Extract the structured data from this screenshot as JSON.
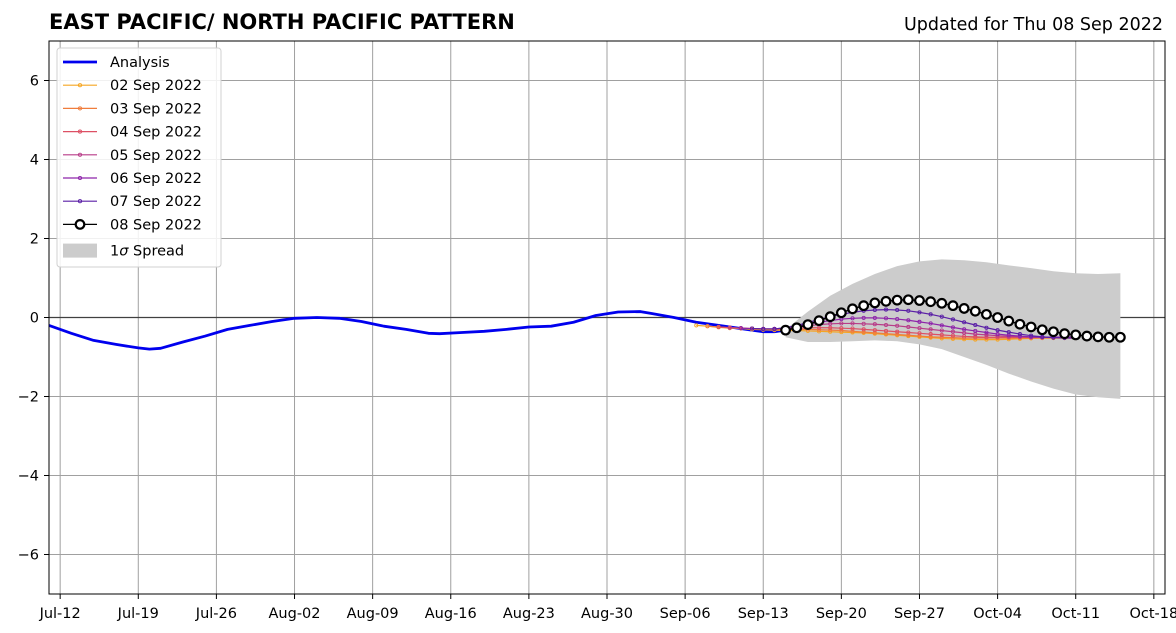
{
  "chart_data": {
    "type": "line",
    "title": "EAST PACIFIC/ NORTH PACIFIC PATTERN",
    "subtitle": "Updated for Thu 08 Sep 2022",
    "xlabel": "",
    "ylabel": "",
    "x_axis": {
      "start_day": 0,
      "end_day": 100,
      "tick_days": [
        1,
        8,
        15,
        22,
        29,
        36,
        43,
        50,
        57,
        64,
        71,
        78,
        85,
        92,
        99
      ],
      "tick_labels": [
        "Jul-12",
        "Jul-19",
        "Jul-26",
        "Aug-02",
        "Aug-09",
        "Aug-16",
        "Aug-23",
        "Aug-30",
        "Sep-06",
        "Sep-13",
        "Sep-20",
        "Sep-27",
        "Oct-04",
        "Oct-11",
        "Oct-18"
      ]
    },
    "ylim": [
      -7,
      7
    ],
    "y_ticks": [
      -6,
      -4,
      -2,
      0,
      2,
      4,
      6
    ],
    "y_tick_labels": [
      "−6",
      "−4",
      "−2",
      "0",
      "2",
      "4",
      "6"
    ],
    "grid": true,
    "legend_position": "top-left",
    "legend": {
      "analysis": "Analysis",
      "spread": "1σ Spread",
      "spread_prefix": "1",
      "spread_sigma": "σ",
      "spread_suffix": " Spread"
    },
    "analysis": {
      "name": "Analysis",
      "color": "#0000ee",
      "points": [
        [
          0,
          -0.2
        ],
        [
          2,
          -0.4
        ],
        [
          4,
          -0.58
        ],
        [
          6,
          -0.68
        ],
        [
          8,
          -0.77
        ],
        [
          9,
          -0.8
        ],
        [
          10,
          -0.78
        ],
        [
          12,
          -0.62
        ],
        [
          14,
          -0.47
        ],
        [
          16,
          -0.3
        ],
        [
          18,
          -0.2
        ],
        [
          20,
          -0.1
        ],
        [
          22,
          -0.02
        ],
        [
          24,
          0.0
        ],
        [
          26,
          -0.02
        ],
        [
          28,
          -0.1
        ],
        [
          30,
          -0.22
        ],
        [
          32,
          -0.3
        ],
        [
          34,
          -0.4
        ],
        [
          35,
          -0.41
        ],
        [
          37,
          -0.38
        ],
        [
          39,
          -0.35
        ],
        [
          41,
          -0.3
        ],
        [
          43,
          -0.24
        ],
        [
          45,
          -0.22
        ],
        [
          47,
          -0.12
        ],
        [
          49,
          0.05
        ],
        [
          51,
          0.14
        ],
        [
          53,
          0.15
        ],
        [
          54,
          0.1
        ],
        [
          56,
          0.0
        ],
        [
          58,
          -0.12
        ],
        [
          60,
          -0.2
        ],
        [
          62,
          -0.28
        ],
        [
          64,
          -0.36
        ],
        [
          65,
          -0.36
        ],
        [
          66,
          -0.32
        ]
      ]
    },
    "spread": {
      "name": "1σ Spread",
      "color": "#cccccc",
      "upper": [
        [
          66,
          -0.3
        ],
        [
          68,
          0.15
        ],
        [
          70,
          0.55
        ],
        [
          72,
          0.85
        ],
        [
          74,
          1.1
        ],
        [
          76,
          1.3
        ],
        [
          78,
          1.42
        ],
        [
          80,
          1.47
        ],
        [
          82,
          1.45
        ],
        [
          84,
          1.4
        ],
        [
          86,
          1.32
        ],
        [
          88,
          1.25
        ],
        [
          90,
          1.17
        ],
        [
          92,
          1.12
        ],
        [
          94,
          1.1
        ],
        [
          96,
          1.12
        ]
      ],
      "lower": [
        [
          66,
          -0.5
        ],
        [
          68,
          -0.62
        ],
        [
          70,
          -0.62
        ],
        [
          72,
          -0.6
        ],
        [
          74,
          -0.58
        ],
        [
          76,
          -0.6
        ],
        [
          78,
          -0.68
        ],
        [
          80,
          -0.8
        ],
        [
          82,
          -1.0
        ],
        [
          84,
          -1.2
        ],
        [
          86,
          -1.42
        ],
        [
          88,
          -1.62
        ],
        [
          90,
          -1.8
        ],
        [
          92,
          -1.95
        ],
        [
          94,
          -2.02
        ],
        [
          96,
          -2.06
        ]
      ]
    },
    "series": [
      {
        "name": "02 Sep 2022",
        "color": "#f5a623",
        "start_day": 58,
        "values": [
          -0.2,
          -0.22,
          -0.25,
          -0.27,
          -0.28,
          -0.3,
          -0.31,
          -0.32,
          -0.33,
          -0.33,
          -0.34,
          -0.35,
          -0.36,
          -0.37,
          -0.38,
          -0.39,
          -0.41,
          -0.43,
          -0.45,
          -0.47,
          -0.49,
          -0.51,
          -0.53,
          -0.54,
          -0.55,
          -0.56,
          -0.56,
          -0.56,
          -0.55,
          -0.54,
          -0.53,
          -0.52,
          -0.52,
          -0.52,
          -0.52
        ]
      },
      {
        "name": "03 Sep 2022",
        "color": "#f07d3c",
        "start_day": 59,
        "values": [
          -0.22,
          -0.24,
          -0.26,
          -0.27,
          -0.28,
          -0.29,
          -0.3,
          -0.3,
          -0.3,
          -0.3,
          -0.31,
          -0.32,
          -0.33,
          -0.35,
          -0.37,
          -0.39,
          -0.41,
          -0.43,
          -0.45,
          -0.47,
          -0.49,
          -0.5,
          -0.51,
          -0.52,
          -0.52,
          -0.52,
          -0.52,
          -0.52,
          -0.52,
          -0.52,
          -0.52,
          -0.52,
          -0.52,
          -0.52
        ]
      },
      {
        "name": "04 Sep 2022",
        "color": "#dd5064",
        "start_day": 60,
        "values": [
          -0.24,
          -0.26,
          -0.27,
          -0.28,
          -0.29,
          -0.29,
          -0.28,
          -0.27,
          -0.26,
          -0.26,
          -0.26,
          -0.27,
          -0.28,
          -0.3,
          -0.32,
          -0.34,
          -0.36,
          -0.38,
          -0.4,
          -0.42,
          -0.44,
          -0.46,
          -0.48,
          -0.49,
          -0.5,
          -0.5,
          -0.5,
          -0.5,
          -0.5,
          -0.5,
          -0.5,
          -0.5,
          -0.5
        ]
      },
      {
        "name": "05 Sep 2022",
        "color": "#b83c88",
        "start_day": 61,
        "values": [
          -0.25,
          -0.27,
          -0.28,
          -0.29,
          -0.29,
          -0.27,
          -0.24,
          -0.21,
          -0.18,
          -0.16,
          -0.15,
          -0.15,
          -0.16,
          -0.17,
          -0.19,
          -0.21,
          -0.24,
          -0.27,
          -0.3,
          -0.33,
          -0.36,
          -0.39,
          -0.42,
          -0.44,
          -0.46,
          -0.48,
          -0.49,
          -0.5,
          -0.5,
          -0.5,
          -0.5,
          -0.5
        ]
      },
      {
        "name": "06 Sep 2022",
        "color": "#8e24aa",
        "start_day": 62,
        "values": [
          -0.27,
          -0.28,
          -0.29,
          -0.29,
          -0.26,
          -0.22,
          -0.17,
          -0.12,
          -0.08,
          -0.04,
          -0.02,
          -0.01,
          -0.01,
          -0.02,
          -0.04,
          -0.07,
          -0.11,
          -0.15,
          -0.2,
          -0.25,
          -0.3,
          -0.34,
          -0.38,
          -0.42,
          -0.45,
          -0.47,
          -0.49,
          -0.5,
          -0.5,
          -0.5,
          -0.5
        ]
      },
      {
        "name": "07 Sep 2022",
        "color": "#5a1fa6",
        "start_day": 63,
        "values": [
          -0.28,
          -0.29,
          -0.29,
          -0.26,
          -0.2,
          -0.13,
          -0.05,
          0.02,
          0.08,
          0.13,
          0.17,
          0.19,
          0.2,
          0.19,
          0.17,
          0.13,
          0.08,
          0.02,
          -0.05,
          -0.12,
          -0.19,
          -0.26,
          -0.32,
          -0.37,
          -0.42,
          -0.46,
          -0.49,
          -0.51,
          -0.52,
          -0.52
        ]
      },
      {
        "name": "08 Sep 2022",
        "color": "#000000",
        "start_day": 66,
        "values": [
          -0.32,
          -0.26,
          -0.18,
          -0.08,
          0.02,
          0.12,
          0.22,
          0.3,
          0.37,
          0.41,
          0.44,
          0.45,
          0.43,
          0.4,
          0.36,
          0.3,
          0.23,
          0.16,
          0.08,
          0.0,
          -0.09,
          -0.17,
          -0.24,
          -0.31,
          -0.36,
          -0.41,
          -0.44,
          -0.47,
          -0.49,
          -0.5,
          -0.5
        ]
      }
    ]
  }
}
